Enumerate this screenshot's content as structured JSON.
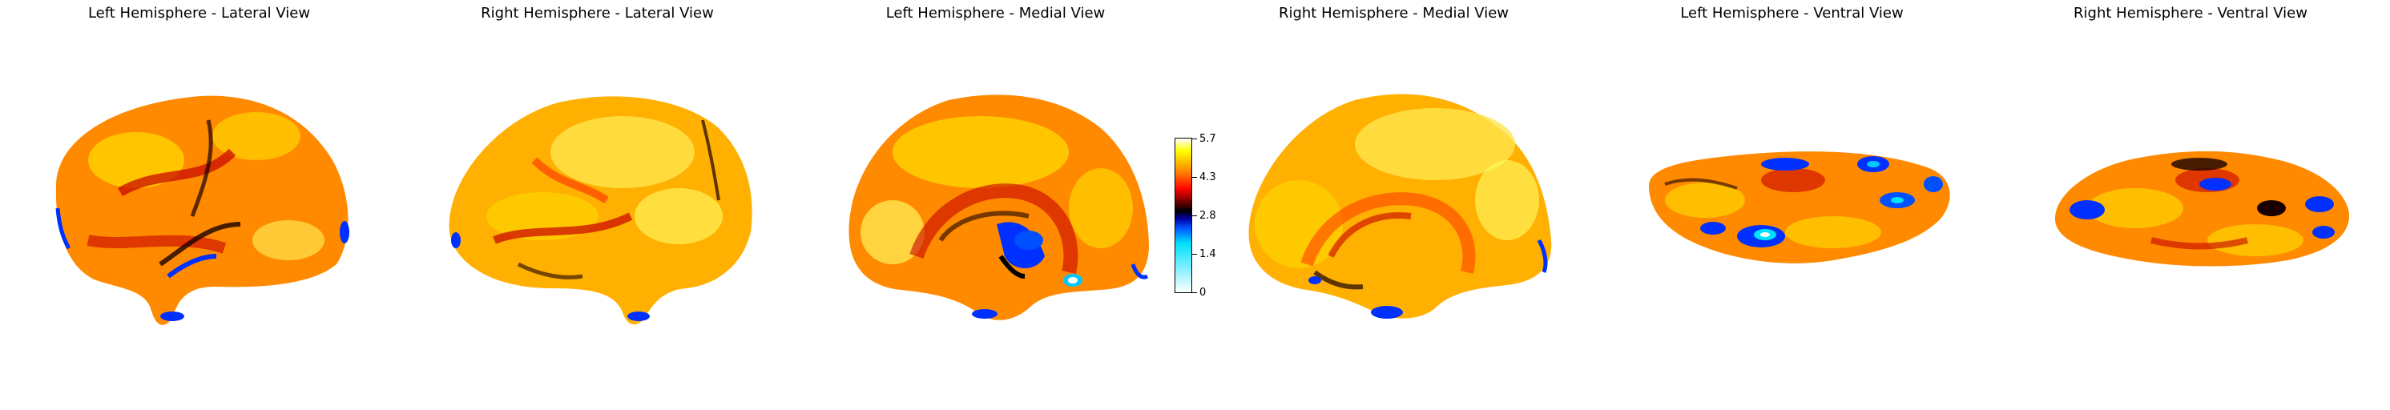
{
  "panels": [
    {
      "title": "Left Hemisphere - Lateral View"
    },
    {
      "title": "Right Hemisphere - Lateral View"
    },
    {
      "title": "Left Hemisphere - Medial View"
    },
    {
      "title": "Right Hemisphere - Medial View"
    },
    {
      "title": "Left Hemisphere - Ventral View"
    },
    {
      "title": "Right Hemisphere - Ventral View"
    }
  ],
  "colorbar": {
    "ticks": [
      "5.7",
      "4.3",
      "2.8",
      "1.4",
      "0"
    ],
    "colormap": [
      "#ffffff",
      "#ffff00",
      "#ff8000",
      "#ff0000",
      "#800000",
      "#000000",
      "#0000a0",
      "#0050ff",
      "#00e0ff",
      "#ffffff"
    ]
  },
  "colors": {
    "hot_base": "#ff8a00",
    "hot_light": "#ffd400",
    "hot_pale": "#ffff66",
    "hot_dark": "#c80000",
    "dark": "#1a0000",
    "blue": "#0030ff",
    "cyan": "#00c8ff"
  }
}
